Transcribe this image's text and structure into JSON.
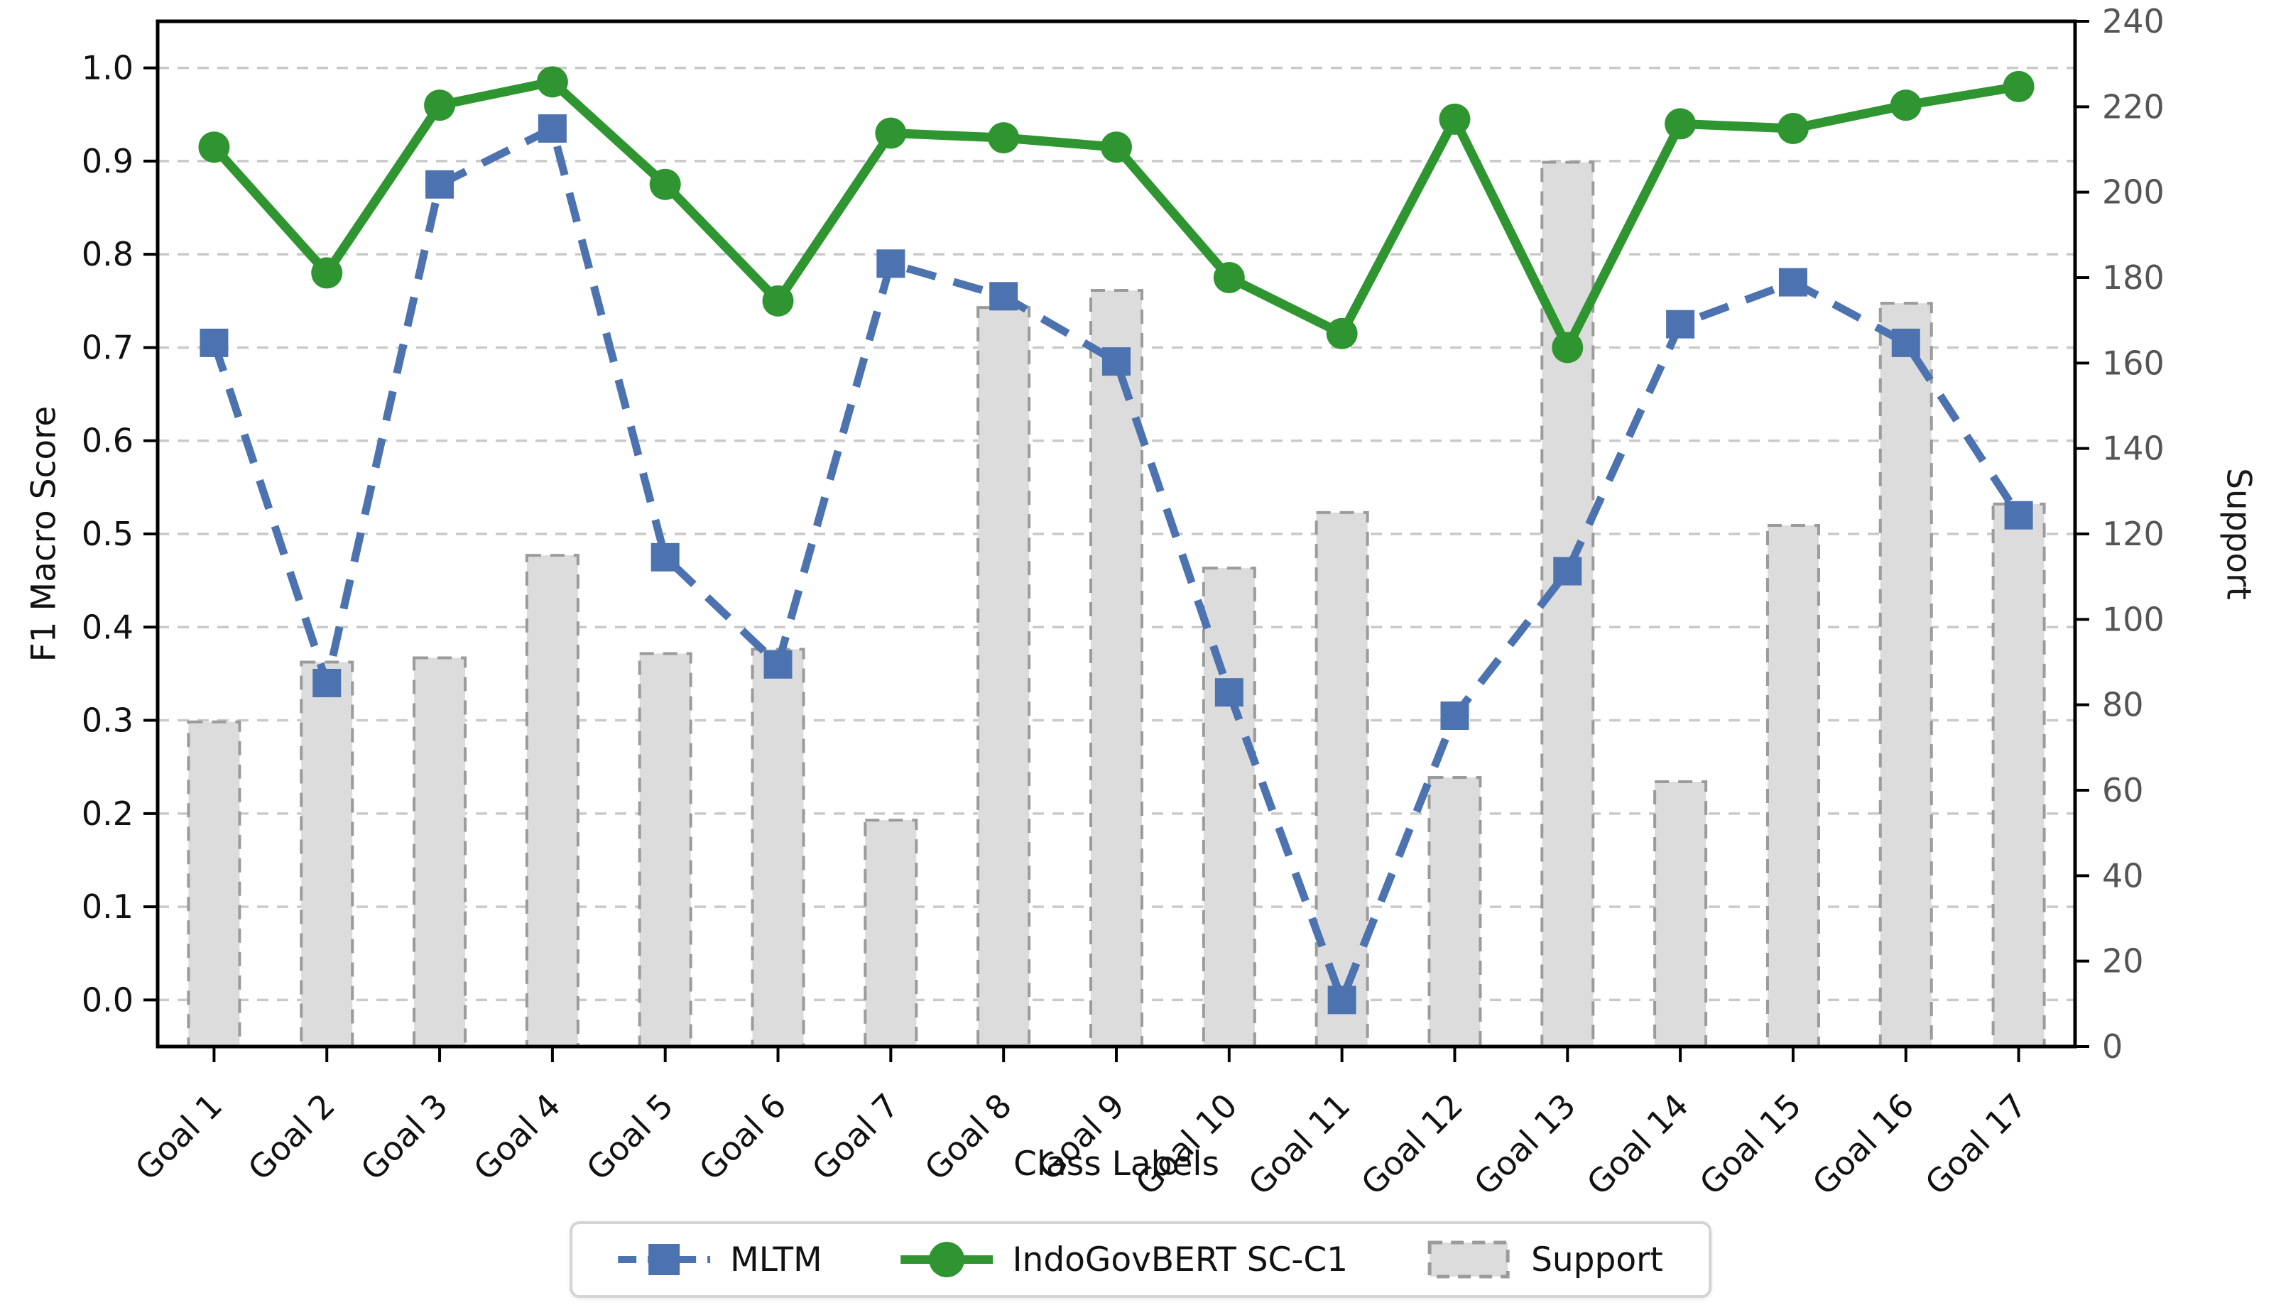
{
  "chart_data": {
    "type": "line+bar",
    "categories": [
      "Goal 1",
      "Goal 2",
      "Goal 3",
      "Goal 4",
      "Goal 5",
      "Goal 6",
      "Goal 7",
      "Goal 8",
      "Goal 9",
      "Goal 10",
      "Goal 11",
      "Goal 12",
      "Goal 13",
      "Goal 14",
      "Goal 15",
      "Goal 16",
      "Goal 17"
    ],
    "series": [
      {
        "name": "MLTM",
        "type": "line",
        "axis": "left",
        "marker": "square",
        "linestyle": "dashed",
        "values": [
          0.705,
          0.34,
          0.875,
          0.935,
          0.475,
          0.36,
          0.79,
          0.755,
          0.685,
          0.33,
          0.0,
          0.305,
          0.46,
          0.725,
          0.77,
          0.705,
          0.52
        ]
      },
      {
        "name": "IndoGovBERT SC-C1",
        "type": "line",
        "axis": "left",
        "marker": "circle",
        "linestyle": "solid",
        "values": [
          0.915,
          0.78,
          0.96,
          0.985,
          0.875,
          0.75,
          0.93,
          0.925,
          0.915,
          0.775,
          0.715,
          0.945,
          0.7,
          0.94,
          0.935,
          0.96,
          0.98
        ]
      },
      {
        "name": "Support",
        "type": "bar",
        "axis": "right",
        "values": [
          76,
          90,
          91,
          115,
          92,
          93,
          53,
          173,
          177,
          112,
          125,
          63,
          207,
          62,
          122,
          174,
          127
        ]
      }
    ],
    "xlabel": "Class Labels",
    "ylabel": "F1 Macro Score",
    "y2label": "Support",
    "ylim": [
      -0.05,
      1.05
    ],
    "y2lim": [
      0,
      240
    ],
    "ytick_labels": [
      "0.0",
      "0.1",
      "0.2",
      "0.3",
      "0.4",
      "0.5",
      "0.6",
      "0.7",
      "0.8",
      "0.9",
      "1.0"
    ],
    "y2tick_labels": [
      "0",
      "20",
      "40",
      "60",
      "80",
      "100",
      "120",
      "140",
      "160",
      "180",
      "200",
      "220",
      "240"
    ],
    "grid": true,
    "legend_position": "bottom"
  },
  "colors": {
    "mltm_blue": "#4c72b0",
    "indogovbert_green": "#2e9530",
    "bar_fill": "#dcdcdc",
    "bar_edge": "#9b9b9b",
    "grid": "#c9c9c9",
    "spine": "#000000",
    "left_tick_text": "#111111",
    "right_tick_text": "#555555"
  }
}
